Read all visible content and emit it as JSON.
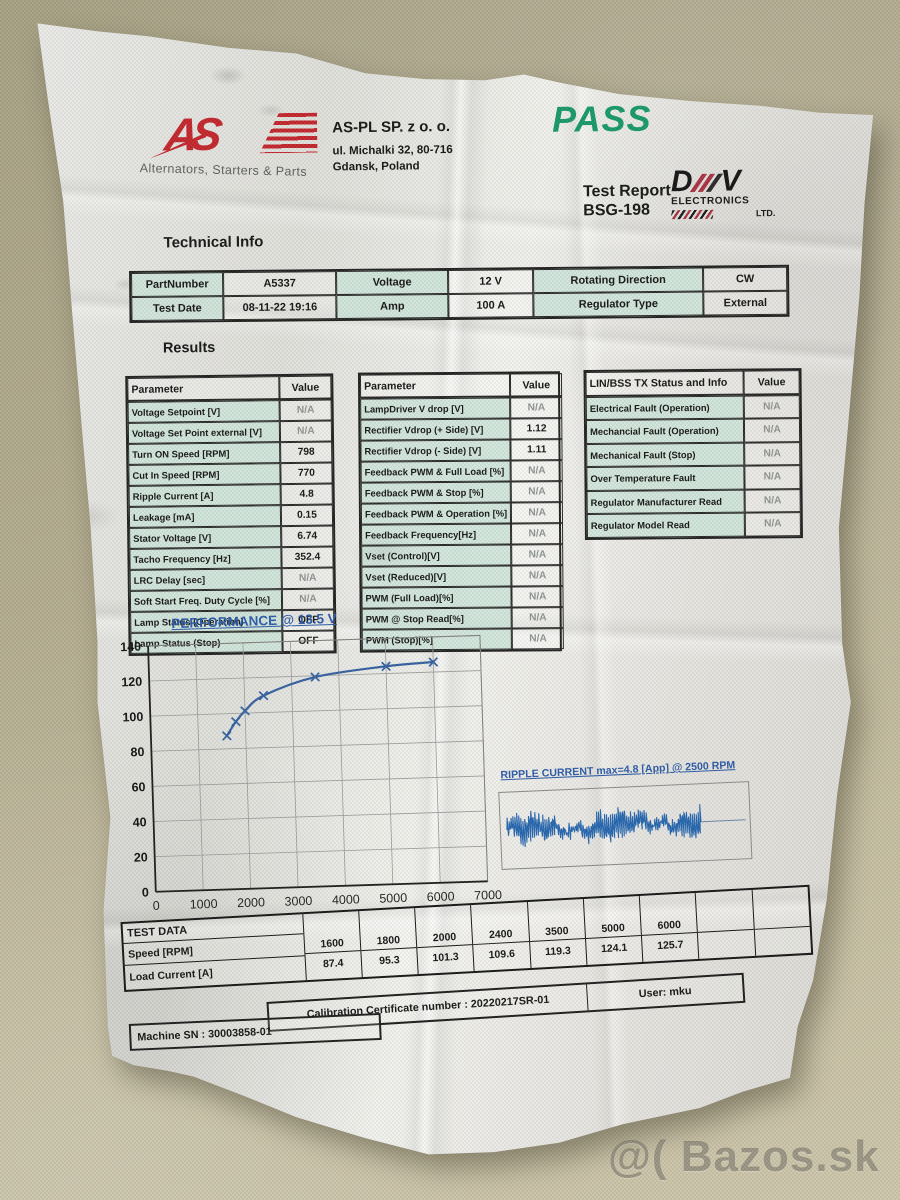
{
  "watermark": "@( Bazos.sk",
  "header": {
    "logo": {
      "text": "AS",
      "tagline": "Alternators, Starters & Parts"
    },
    "company": {
      "name": "AS-PL SP. z o. o.",
      "address_line1": "ul. Michalki 32, 80-716",
      "address_line2": "Gdansk, Poland"
    },
    "result": "PASS",
    "report": {
      "line1": "Test Report",
      "line2": "BSG-198"
    },
    "dav": {
      "d": "D",
      "v": "V",
      "line1": "ELECTRONICS",
      "line2": "LTD."
    }
  },
  "technical_info": {
    "heading": "Technical Info",
    "rows": [
      [
        {
          "label": "PartNumber",
          "value": "A5337"
        },
        {
          "label": "Voltage",
          "value": "12 V"
        },
        {
          "label": "Rotating Direction",
          "value": "CW"
        }
      ],
      [
        {
          "label": "Test Date",
          "value": "08-11-22 19:16"
        },
        {
          "label": "Amp",
          "value": "100 A"
        },
        {
          "label": "Regulator Type",
          "value": "External"
        }
      ]
    ]
  },
  "results": {
    "heading": "Results",
    "tables": [
      {
        "header": [
          "Parameter",
          "Value"
        ],
        "rows": [
          [
            "Voltage Setpoint [V]",
            "N/A"
          ],
          [
            "Voltage Set Point external [V]",
            "N/A"
          ],
          [
            "Turn ON Speed [RPM]",
            "798"
          ],
          [
            "Cut In Speed [RPM]",
            "770"
          ],
          [
            "Ripple Current [A]",
            "4.8"
          ],
          [
            "Leakage [mA]",
            "0.15"
          ],
          [
            "Stator Voltage [V]",
            "6.74"
          ],
          [
            "Tacho Frequency [Hz]",
            "352.4"
          ],
          [
            "LRC Delay [sec]",
            "N/A"
          ],
          [
            "Soft Start Freq. Duty Cycle [%]",
            "N/A"
          ],
          [
            "Lamp Status (Operation)",
            "OFF"
          ],
          [
            "Lamp Status (Stop)",
            "OFF"
          ]
        ]
      },
      {
        "header": [
          "Parameter",
          "Value"
        ],
        "rows": [
          [
            "LampDriver V drop [V]",
            "N/A"
          ],
          [
            "Rectifier Vdrop (+ Side) [V]",
            "1.12"
          ],
          [
            "Rectifier Vdrop (- Side) [V]",
            "1.11"
          ],
          [
            "Feedback PWM & Full Load [%]",
            "N/A"
          ],
          [
            "Feedback PWM & Stop [%]",
            "N/A"
          ],
          [
            "Feedback PWM & Operation [%]",
            "N/A"
          ],
          [
            "Feedback Frequency[Hz]",
            "N/A"
          ],
          [
            "Vset (Control)[V]",
            "N/A"
          ],
          [
            "Vset (Reduced)[V]",
            "N/A"
          ],
          [
            "PWM (Full Load)[%]",
            "N/A"
          ],
          [
            "PWM @ Stop Read[%]",
            "N/A"
          ],
          [
            "PWM (Stop)[%]",
            "N/A"
          ]
        ]
      },
      {
        "header": [
          "LIN/BSS TX Status and Info",
          "Value"
        ],
        "rows": [
          [
            "Electrical Fault (Operation)",
            "N/A"
          ],
          [
            "Mechancial Fault (Operation)",
            "N/A"
          ],
          [
            "Mechanical Fault (Stop)",
            "N/A"
          ],
          [
            "Over Temperature Fault",
            "N/A"
          ],
          [
            "Regulator Manufacturer Read",
            "N/A"
          ],
          [
            "Regulator Model Read",
            "N/A"
          ]
        ]
      }
    ]
  },
  "chart_data": [
    {
      "type": "line",
      "title": "PERFORMANCE  @ 13.5 V",
      "x": [
        1600,
        1800,
        2000,
        2400,
        3500,
        5000,
        6000
      ],
      "y": [
        87.4,
        95.3,
        101.3,
        109.6,
        119.3,
        124.1,
        125.7
      ],
      "xlim": [
        0,
        7000
      ],
      "ylim": [
        0,
        140
      ],
      "x_ticks": [
        0,
        1000,
        2000,
        3000,
        4000,
        5000,
        6000,
        7000
      ],
      "y_ticks": [
        0,
        20,
        40,
        60,
        80,
        100,
        120,
        140
      ],
      "grid": true,
      "marker": "x",
      "line_color": "#33619f"
    },
    {
      "type": "line",
      "title": "RIPPLE CURRENT  max=4.8 [App] @ 2500 RPM",
      "waveform": "noise",
      "max_app": 4.8,
      "rpm": 2500,
      "line_color": "#2465ae"
    }
  ],
  "test_data": {
    "title": "TEST DATA",
    "row_labels": [
      "Speed   [RPM]",
      "Load Current  [A]"
    ],
    "speed": [
      "1600",
      "1800",
      "2000",
      "2400",
      "3500",
      "5000",
      "6000",
      "",
      ""
    ],
    "load_current": [
      "87.4",
      "95.3",
      "101.3",
      "109.6",
      "119.3",
      "124.1",
      "125.7",
      "",
      ""
    ]
  },
  "footer": {
    "machine_sn": "Machine SN : 30003858-01",
    "calibration": "Calibration Certificate number : 20220217SR-01",
    "user": "User:  mku"
  },
  "colors": {
    "accent_red": "#c2262d",
    "pass_green": "#17976a",
    "chart_blue": "#33619f",
    "label_tint": "#d7e7df",
    "paper": "#e9e8e5",
    "table_background": "#b3ab8f"
  }
}
